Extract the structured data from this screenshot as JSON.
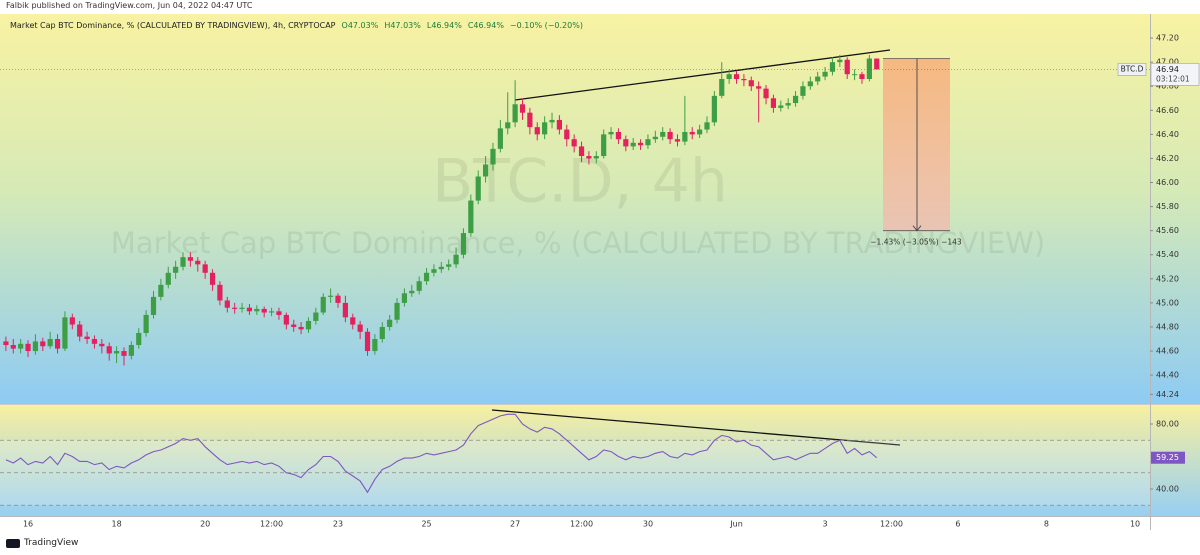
{
  "header": {
    "publisher": "Falbik published on TradingView.com, Jun 04, 2022 04:47 UTC"
  },
  "footer": {
    "brand": "TradingView"
  },
  "chart_data": [
    {
      "type": "candlestick",
      "title": "Market Cap BTC Dominance, % (CALCULATED BY TRADINGVIEW), 4h, CRYPTOCAP",
      "ohlc_legend": [
        "O47.03%",
        "H47.03%",
        "L46.94%",
        "C46.94%",
        "−0.10% (−0.20%)"
      ],
      "watermark": [
        "BTC.D, 4h",
        "Market Cap BTC Dominance, % (CALCULATED BY TRADINGVIEW)"
      ],
      "symbol_label": "BTC.D",
      "last_price": 46.94,
      "countdown": "03:12:01",
      "up_color": "#3e9e46",
      "down_color": "#e2215e",
      "projection": {
        "from": 47.03,
        "to": 45.6,
        "label": "−1.43% (−3.05%) −143"
      },
      "ylim": [
        44.16,
        47.4
      ],
      "yticks": [
        {
          "value": 47.2,
          "label": "47.20"
        },
        {
          "value": 47.0,
          "label": "47.00"
        },
        {
          "value": 46.8,
          "label": "46.80"
        },
        {
          "value": 46.6,
          "label": "46.60"
        },
        {
          "value": 46.4,
          "label": "46.40"
        },
        {
          "value": 46.2,
          "label": "46.20"
        },
        {
          "value": 46.0,
          "label": "46.00"
        },
        {
          "value": 45.8,
          "label": "45.80"
        },
        {
          "value": 45.6,
          "label": "45.60"
        },
        {
          "value": 45.4,
          "label": "45.40"
        },
        {
          "value": 45.2,
          "label": "45.20"
        },
        {
          "value": 45.0,
          "label": "45.00"
        },
        {
          "value": 44.8,
          "label": "44.80"
        },
        {
          "value": 44.6,
          "label": "44.60"
        },
        {
          "value": 44.4,
          "label": "44.40"
        },
        44.24
      ],
      "categories": [
        null,
        null,
        null,
        "16",
        null,
        null,
        null,
        null,
        null,
        null,
        null,
        null,
        null,
        null,
        null,
        "18",
        null,
        null,
        null,
        null,
        null,
        null,
        null,
        null,
        null,
        null,
        null,
        "20",
        null,
        null,
        null,
        null,
        null,
        null,
        null,
        null,
        "12:00",
        null,
        null,
        null,
        null,
        null,
        null,
        null,
        null,
        "23",
        null,
        null,
        null,
        null,
        null,
        null,
        null,
        null,
        null,
        null,
        null,
        "25",
        null,
        null,
        null,
        null,
        null,
        null,
        null,
        null,
        null,
        null,
        null,
        "27",
        null,
        null,
        null,
        null,
        null,
        null,
        null,
        null,
        "12:00",
        null,
        null,
        null,
        null,
        null,
        null,
        null,
        null,
        "30",
        null,
        null,
        null,
        null,
        null,
        null,
        null,
        null,
        null,
        null,
        null,
        "Jun",
        null,
        null,
        null,
        null,
        null,
        null,
        null,
        null,
        null,
        null,
        null,
        "3",
        null,
        null,
        null,
        null,
        null,
        null,
        null,
        null,
        "12:00",
        null,
        null,
        null,
        null,
        null,
        null,
        null,
        null,
        "6",
        null,
        null,
        null,
        null,
        null,
        null,
        null,
        null,
        null,
        null,
        null,
        "8",
        null,
        null,
        null,
        null,
        null,
        null,
        null,
        null,
        null,
        null,
        null,
        "10",
        null
      ],
      "open": [
        44.68,
        44.65,
        44.62,
        44.66,
        44.6,
        44.68,
        44.64,
        44.7,
        44.62,
        44.88,
        44.82,
        44.72,
        44.7,
        44.66,
        44.64,
        44.58,
        44.6,
        44.56,
        44.65,
        44.75,
        44.9,
        45.05,
        45.15,
        45.25,
        45.3,
        45.38,
        45.35,
        45.32,
        45.25,
        45.15,
        45.02,
        44.96,
        44.95,
        44.96,
        44.93,
        44.95,
        44.92,
        44.93,
        44.9,
        44.82,
        44.8,
        44.78,
        44.85,
        44.92,
        45.05,
        45.06,
        45.0,
        44.88,
        44.82,
        44.76,
        44.6,
        44.7,
        44.8,
        44.86,
        45.0,
        45.08,
        45.1,
        45.18,
        45.25,
        45.28,
        45.3,
        45.32,
        45.4,
        45.58,
        45.85,
        46.05,
        46.15,
        46.28,
        46.45,
        46.5,
        46.65,
        46.58,
        46.46,
        46.4,
        46.5,
        46.52,
        46.44,
        46.36,
        46.3,
        46.22,
        46.2,
        46.22,
        46.4,
        46.42,
        46.36,
        46.3,
        46.33,
        46.31,
        46.36,
        46.38,
        46.42,
        46.36,
        46.34,
        46.42,
        46.4,
        46.44,
        46.5,
        46.72,
        46.86,
        46.9,
        46.86,
        46.85,
        46.8,
        46.78,
        46.7,
        46.62,
        46.64,
        46.66,
        46.72,
        46.8,
        46.84,
        46.88,
        46.92,
        47.0,
        47.02,
        46.9,
        46.9,
        46.86,
        47.03,
        null,
        null,
        null,
        null,
        null,
        null,
        null,
        null,
        null,
        null,
        null,
        null,
        null,
        null,
        null,
        null,
        null,
        null,
        null,
        null,
        null,
        null,
        null,
        null,
        null,
        null,
        null,
        null,
        null,
        null,
        null,
        null,
        null,
        null,
        null,
        null
      ],
      "high": [
        44.72,
        44.7,
        44.7,
        44.69,
        44.74,
        44.71,
        44.76,
        44.74,
        44.93,
        44.91,
        44.85,
        44.76,
        44.73,
        44.7,
        44.67,
        44.64,
        44.63,
        44.68,
        44.79,
        44.94,
        45.1,
        45.2,
        45.3,
        45.35,
        45.42,
        45.42,
        45.38,
        45.35,
        45.28,
        45.18,
        45.05,
        45.0,
        45.0,
        44.99,
        44.98,
        44.97,
        44.96,
        44.96,
        44.92,
        44.86,
        44.84,
        44.88,
        44.96,
        45.08,
        45.12,
        45.08,
        45.06,
        44.91,
        44.85,
        44.79,
        44.74,
        44.84,
        44.9,
        45.04,
        45.12,
        45.15,
        45.22,
        45.29,
        45.32,
        45.34,
        45.36,
        45.46,
        45.62,
        45.9,
        46.1,
        46.22,
        46.33,
        46.52,
        46.75,
        46.85,
        46.7,
        46.62,
        46.5,
        46.55,
        46.58,
        46.56,
        46.48,
        46.4,
        46.34,
        46.26,
        46.26,
        46.44,
        46.46,
        46.45,
        46.39,
        46.37,
        46.36,
        46.4,
        46.43,
        46.46,
        46.45,
        46.4,
        46.72,
        46.46,
        46.48,
        46.55,
        46.76,
        47.0,
        46.94,
        46.93,
        46.9,
        46.88,
        46.84,
        46.81,
        46.73,
        46.68,
        46.7,
        46.76,
        46.84,
        46.88,
        46.92,
        46.96,
        47.04,
        47.06,
        47.04,
        46.94,
        46.92,
        47.06,
        47.03,
        null,
        null,
        null,
        null,
        null,
        null,
        null,
        null,
        null,
        null,
        null,
        null,
        null,
        null,
        null,
        null,
        null,
        null,
        null,
        null,
        null,
        null,
        null,
        null,
        null,
        null,
        null,
        null,
        null,
        null,
        null,
        null,
        null,
        null,
        null,
        null
      ],
      "low": [
        44.6,
        44.58,
        44.58,
        44.55,
        44.57,
        44.6,
        44.62,
        44.58,
        44.6,
        44.78,
        44.68,
        44.66,
        44.62,
        44.58,
        44.52,
        44.5,
        44.48,
        44.53,
        44.62,
        44.72,
        44.87,
        45.02,
        45.12,
        45.2,
        45.27,
        45.3,
        45.26,
        45.2,
        45.1,
        44.98,
        44.92,
        44.91,
        44.92,
        44.9,
        44.9,
        44.88,
        44.89,
        44.86,
        44.78,
        44.76,
        44.74,
        44.75,
        44.82,
        44.9,
        45.0,
        44.96,
        44.84,
        44.78,
        44.7,
        44.56,
        44.57,
        44.67,
        44.77,
        44.83,
        44.97,
        45.05,
        45.07,
        45.15,
        45.22,
        45.25,
        45.27,
        45.29,
        45.37,
        45.55,
        45.82,
        46.0,
        46.1,
        46.25,
        46.4,
        46.46,
        46.52,
        46.4,
        46.35,
        46.36,
        46.45,
        46.4,
        46.3,
        46.25,
        46.17,
        46.15,
        46.16,
        46.2,
        46.36,
        46.32,
        46.26,
        46.27,
        46.27,
        46.28,
        46.33,
        46.35,
        46.32,
        46.3,
        46.31,
        46.36,
        46.37,
        46.41,
        46.47,
        46.7,
        46.82,
        46.82,
        46.8,
        46.76,
        46.5,
        46.65,
        46.58,
        46.59,
        46.61,
        46.63,
        46.69,
        46.77,
        46.81,
        46.85,
        46.89,
        46.96,
        46.86,
        46.85,
        46.82,
        46.84,
        46.94,
        null,
        null,
        null,
        null,
        null,
        null,
        null,
        null,
        null,
        null,
        null,
        null,
        null,
        null,
        null,
        null,
        null,
        null,
        null,
        null,
        null,
        null,
        null,
        null,
        null,
        null,
        null,
        null,
        null,
        null,
        null,
        null,
        null,
        null,
        null,
        null
      ],
      "close": [
        44.65,
        44.62,
        44.66,
        44.6,
        44.68,
        44.64,
        44.7,
        44.62,
        44.88,
        44.82,
        44.72,
        44.7,
        44.66,
        44.64,
        44.58,
        44.6,
        44.56,
        44.65,
        44.75,
        44.9,
        45.05,
        45.15,
        45.25,
        45.3,
        45.38,
        45.35,
        45.32,
        45.25,
        45.15,
        45.02,
        44.96,
        44.95,
        44.96,
        44.93,
        44.95,
        44.92,
        44.93,
        44.9,
        44.82,
        44.8,
        44.78,
        44.85,
        44.92,
        45.05,
        45.06,
        45.0,
        44.88,
        44.82,
        44.76,
        44.6,
        44.7,
        44.8,
        44.86,
        45.0,
        45.08,
        45.1,
        45.18,
        45.25,
        45.28,
        45.3,
        45.32,
        45.4,
        45.58,
        45.85,
        46.05,
        46.15,
        46.28,
        46.45,
        46.5,
        46.65,
        46.58,
        46.46,
        46.4,
        46.5,
        46.52,
        46.44,
        46.36,
        46.3,
        46.22,
        46.2,
        46.22,
        46.4,
        46.42,
        46.36,
        46.3,
        46.33,
        46.31,
        46.36,
        46.38,
        46.42,
        46.36,
        46.34,
        46.42,
        46.4,
        46.44,
        46.5,
        46.72,
        46.86,
        46.9,
        46.86,
        46.85,
        46.8,
        46.78,
        46.7,
        46.62,
        46.64,
        46.66,
        46.72,
        46.8,
        46.84,
        46.88,
        46.92,
        47.0,
        47.02,
        46.9,
        46.9,
        46.86,
        47.03,
        46.94,
        null,
        null,
        null,
        null,
        null,
        null,
        null,
        null,
        null,
        null,
        null,
        null,
        null,
        null,
        null,
        null,
        null,
        null,
        null,
        null,
        null,
        null,
        null,
        null,
        null,
        null,
        null,
        null,
        null,
        null,
        null,
        null,
        null,
        null,
        null,
        null
      ]
    },
    {
      "type": "line",
      "color": "#7e57c2",
      "levels": [
        70,
        50,
        30
      ],
      "last_value": 59.25,
      "ylim": [
        24,
        91.7
      ],
      "yticks": [
        {
          "value": 80,
          "label": "80.00"
        },
        {
          "value": 40,
          "label": "40.00"
        }
      ],
      "values": [
        58,
        56,
        59,
        55,
        57,
        56,
        60,
        55,
        62,
        60,
        57,
        57,
        55,
        56,
        52,
        54,
        53,
        56,
        58,
        61,
        63,
        64,
        66,
        68,
        71,
        70,
        71,
        66,
        62,
        58,
        55,
        56,
        57,
        56,
        57,
        55,
        56,
        54,
        50,
        49,
        47,
        52,
        55,
        60,
        60,
        57,
        51,
        48,
        45,
        38,
        46,
        52,
        54,
        57,
        59,
        59,
        60,
        62,
        61,
        62,
        63,
        64,
        67,
        74,
        79,
        81,
        83,
        85,
        86,
        86,
        80,
        77,
        75,
        78,
        77,
        74,
        70,
        66,
        62,
        58,
        60,
        64,
        63,
        60,
        58,
        60,
        59,
        60,
        62,
        63,
        60,
        59,
        62,
        61,
        63,
        64,
        70,
        73,
        72,
        69,
        70,
        67,
        66,
        62,
        58,
        59,
        60,
        58,
        60,
        62,
        62,
        65,
        68,
        70,
        62,
        65,
        61,
        63,
        59.25,
        null,
        null,
        null,
        null,
        null,
        null,
        null,
        null,
        null,
        null,
        null,
        null,
        null,
        null,
        null,
        null,
        null,
        null,
        null,
        null,
        null,
        null,
        null,
        null,
        null,
        null,
        null,
        null,
        null,
        null,
        null,
        null,
        null,
        null,
        null,
        null
      ]
    }
  ]
}
